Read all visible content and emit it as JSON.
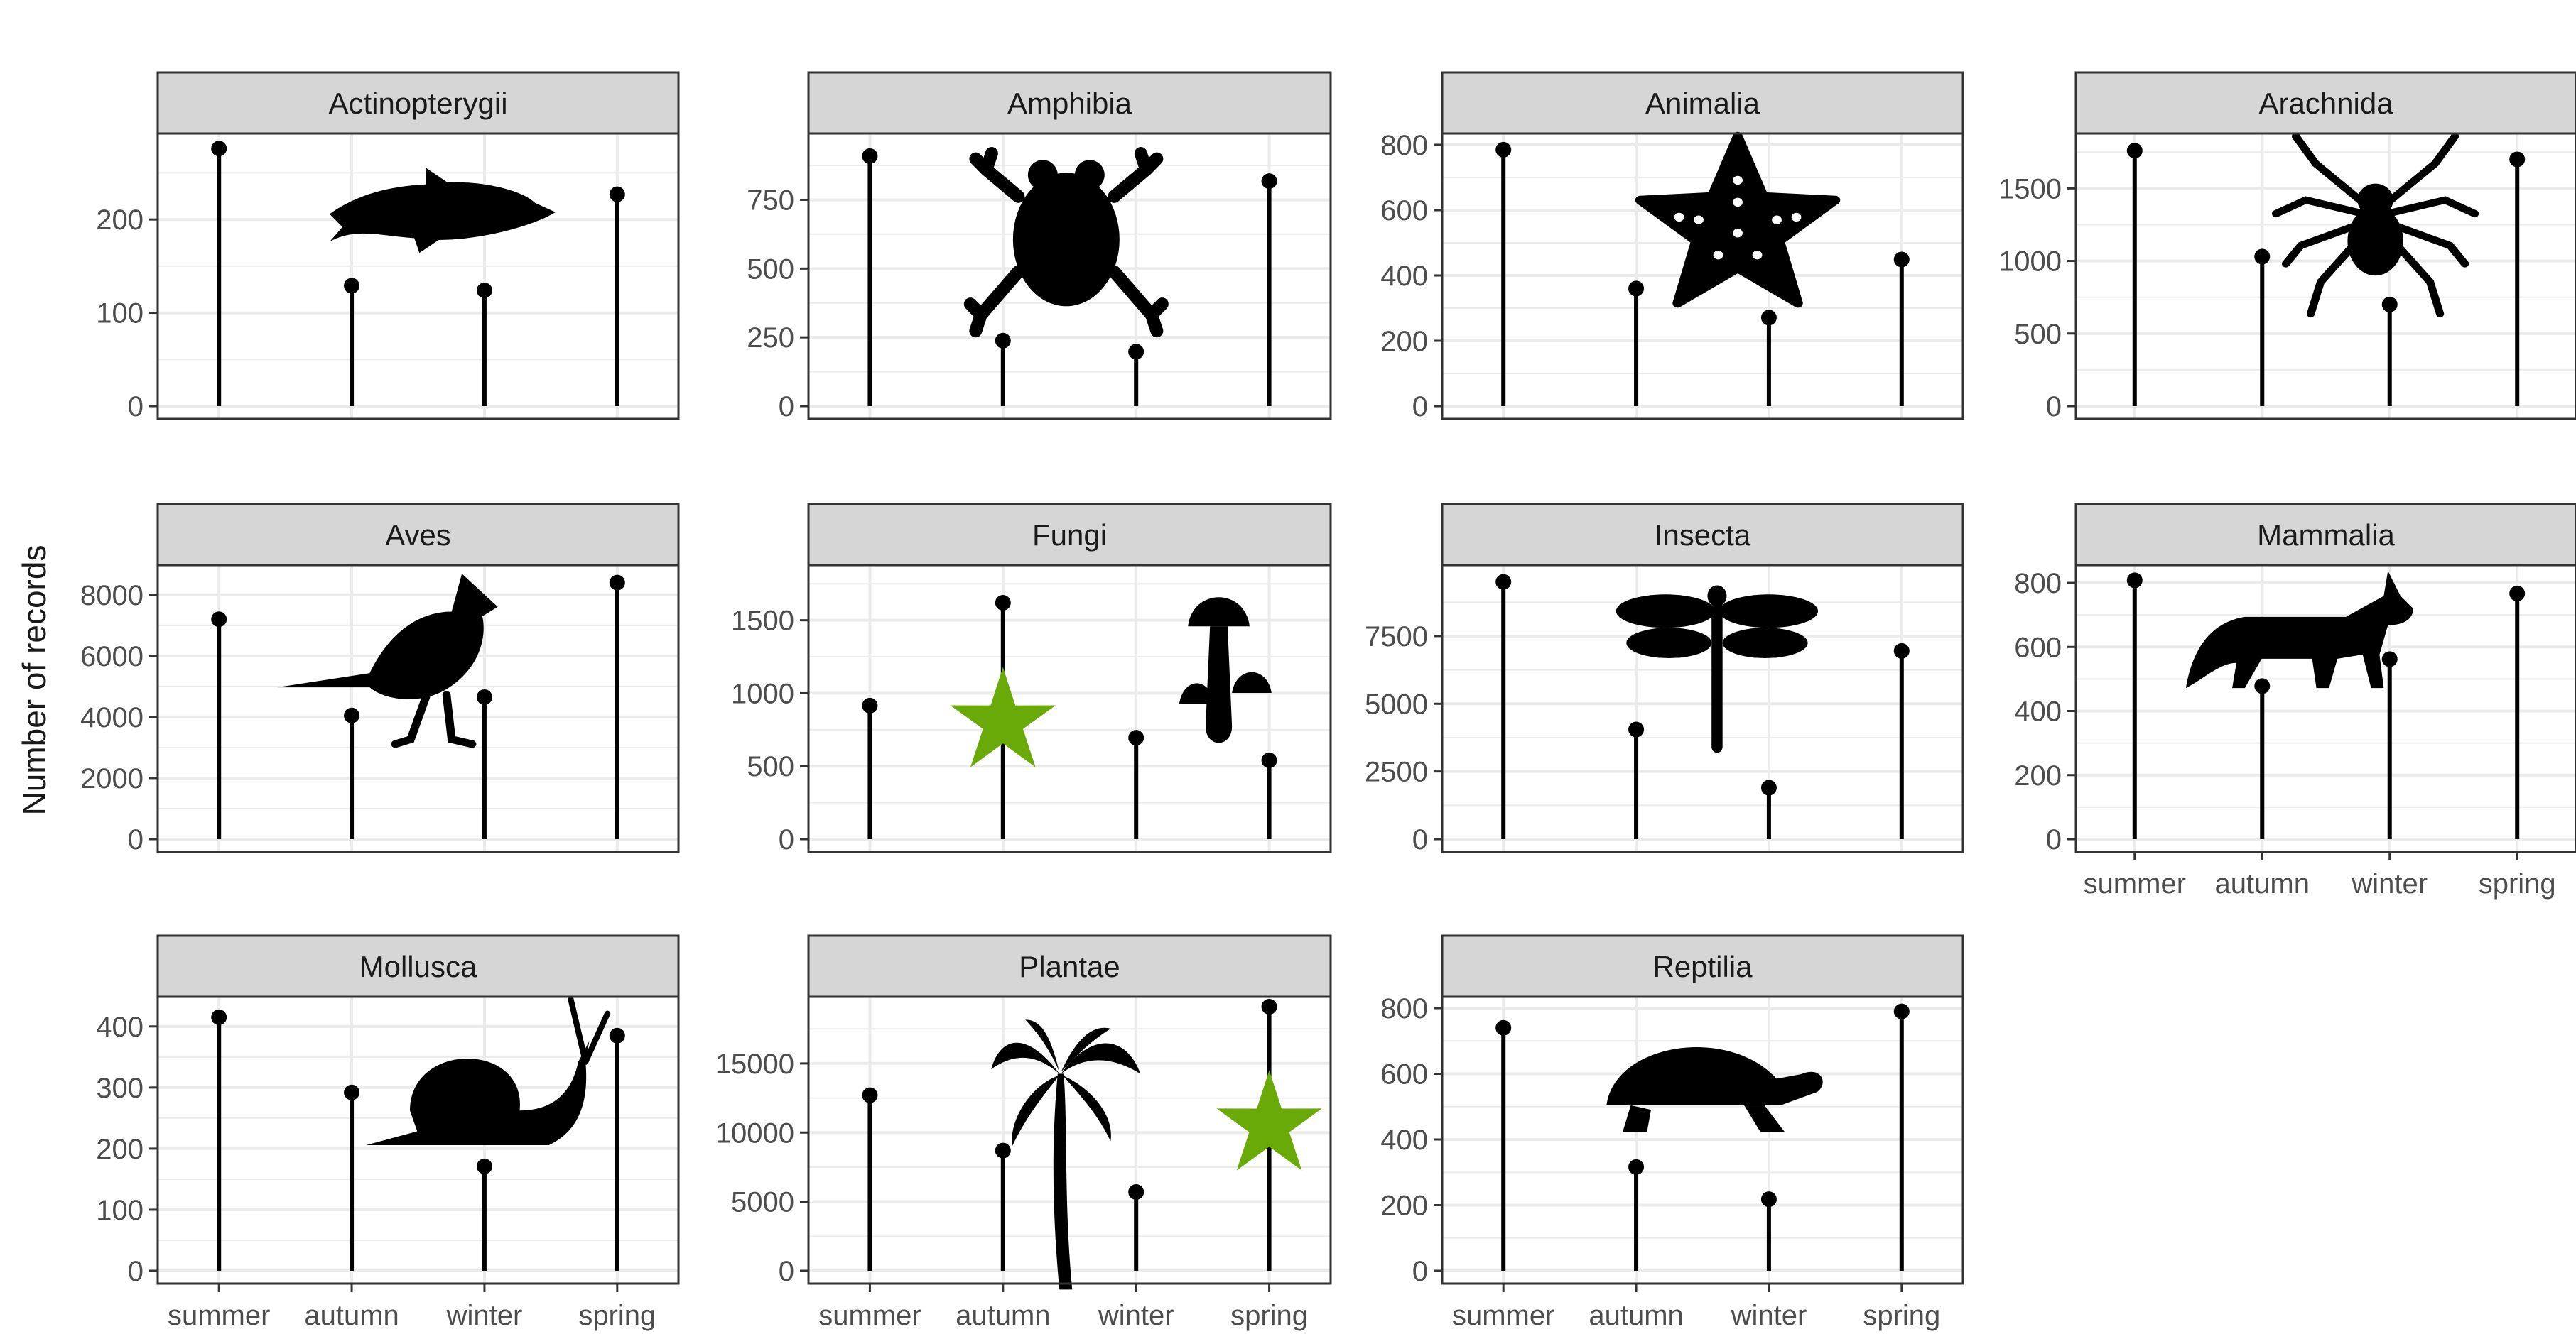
{
  "chart_data": {
    "type": "lollipop",
    "ylabel": "Number of records",
    "categories": [
      "summer",
      "autumn",
      "winter",
      "spring"
    ],
    "colors": {
      "strip": "#d6d6d6",
      "grid": "#ebebeb",
      "mark": "#000000",
      "star": "#6aaa08"
    },
    "facets": [
      {
        "name": "Actinopterygii",
        "ylim": [
          0,
          280
        ],
        "ticks": [
          0,
          100,
          200
        ],
        "values": [
          276,
          129,
          124,
          227
        ],
        "icon": "fish-icon",
        "stars": []
      },
      {
        "name": "Amphibia",
        "ylim": [
          0,
          950
        ],
        "ticks": [
          0,
          250,
          500,
          750
        ],
        "values": [
          909,
          238,
          198,
          818
        ],
        "icon": "frog-icon",
        "stars": []
      },
      {
        "name": "Animalia",
        "ylim": [
          0,
          800
        ],
        "ticks": [
          0,
          200,
          400,
          600,
          800
        ],
        "values": [
          785,
          360,
          271,
          449
        ],
        "icon": "starfish-icon",
        "stars": []
      },
      {
        "name": "Arachnida",
        "ylim": [
          0,
          1800
        ],
        "ticks": [
          0,
          500,
          1000,
          1500
        ],
        "values": [
          1760,
          1030,
          700,
          1700
        ],
        "icon": "spider-icon",
        "stars": []
      },
      {
        "name": "Aves",
        "ylim": [
          0,
          8600
        ],
        "ticks": [
          0,
          2000,
          4000,
          6000,
          8000
        ],
        "values": [
          7200,
          4050,
          4650,
          8400
        ],
        "icon": "bird-icon",
        "stars": []
      },
      {
        "name": "Fungi",
        "ylim": [
          0,
          1800
        ],
        "ticks": [
          0,
          500,
          1000,
          1500
        ],
        "values": [
          915,
          1620,
          695,
          540
        ],
        "icon": "mushroom-icon",
        "stars": [
          {
            "category": "autumn",
            "value": 800
          }
        ]
      },
      {
        "name": "Insecta",
        "ylim": [
          0,
          9700
        ],
        "ticks": [
          0,
          2500,
          5000,
          7500
        ],
        "values": [
          9500,
          4050,
          1900,
          6950
        ],
        "icon": "dragonfly-icon",
        "stars": []
      },
      {
        "name": "Mammalia",
        "ylim": [
          0,
          820
        ],
        "ticks": [
          0,
          200,
          400,
          600,
          800
        ],
        "values": [
          808,
          478,
          562,
          767
        ],
        "icon": "fox-icon",
        "stars": []
      },
      {
        "name": "Mollusca",
        "ylim": [
          0,
          430
        ],
        "ticks": [
          0,
          100,
          200,
          300,
          400
        ],
        "values": [
          415,
          292,
          171,
          385
        ],
        "icon": "snail-icon",
        "stars": []
      },
      {
        "name": "Plantae",
        "ylim": [
          0,
          19000
        ],
        "ticks": [
          0,
          5000,
          10000,
          15000
        ],
        "values": [
          12700,
          8700,
          5700,
          19100
        ],
        "icon": "palm-tree-icon",
        "stars": [
          {
            "category": "spring",
            "value": 10500
          }
        ]
      },
      {
        "name": "Reptilia",
        "ylim": [
          0,
          800
        ],
        "ticks": [
          0,
          200,
          400,
          600,
          800
        ],
        "values": [
          740,
          316,
          218,
          790
        ],
        "icon": "turtle-icon",
        "stars": []
      }
    ]
  }
}
